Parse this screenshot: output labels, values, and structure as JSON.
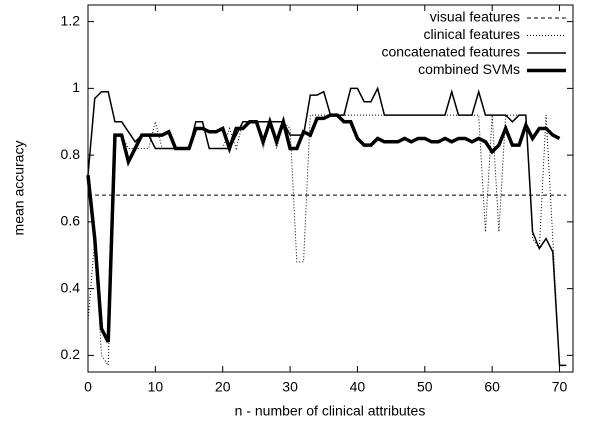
{
  "chart_data": {
    "type": "line",
    "x_label": "n - number of clinical attributes",
    "y_label": "mean accuracy",
    "x": [
      0,
      1,
      2,
      3,
      4,
      5,
      6,
      7,
      8,
      9,
      10,
      11,
      12,
      13,
      14,
      15,
      16,
      17,
      18,
      19,
      20,
      21,
      22,
      23,
      24,
      25,
      26,
      27,
      28,
      29,
      30,
      31,
      32,
      33,
      34,
      35,
      36,
      37,
      38,
      39,
      40,
      41,
      42,
      43,
      44,
      45,
      46,
      47,
      48,
      49,
      50,
      51,
      52,
      53,
      54,
      55,
      56,
      57,
      58,
      59,
      60,
      61,
      62,
      63,
      64,
      65,
      66,
      67,
      68,
      69,
      70,
      71
    ],
    "xlim": [
      0,
      72
    ],
    "xticks": [
      0,
      10,
      20,
      30,
      40,
      50,
      60,
      70
    ],
    "ylim": [
      0.15,
      1.25
    ],
    "yticks": [
      0.2,
      0.4,
      0.6,
      0.8,
      1,
      1.2
    ],
    "legend": "top-right",
    "series": [
      {
        "name": "visual features",
        "color": "#000000",
        "width": 1,
        "dash": "4,3",
        "values": [
          0.68,
          0.68,
          0.68,
          0.68,
          0.68,
          0.68,
          0.68,
          0.68,
          0.68,
          0.68,
          0.68,
          0.68,
          0.68,
          0.68,
          0.68,
          0.68,
          0.68,
          0.68,
          0.68,
          0.68,
          0.68,
          0.68,
          0.68,
          0.68,
          0.68,
          0.68,
          0.68,
          0.68,
          0.68,
          0.68,
          0.68,
          0.68,
          0.68,
          0.68,
          0.68,
          0.68,
          0.68,
          0.68,
          0.68,
          0.68,
          0.68,
          0.68,
          0.68,
          0.68,
          0.68,
          0.68,
          0.68,
          0.68,
          0.68,
          0.68,
          0.68,
          0.68,
          0.68,
          0.68,
          0.68,
          0.68,
          0.68,
          0.68,
          0.68,
          0.68,
          0.68,
          0.68,
          0.68,
          0.68,
          0.68,
          0.68,
          0.68,
          0.68,
          0.68,
          0.68,
          0.68,
          0.68
        ]
      },
      {
        "name": "clinical features",
        "color": "#000000",
        "width": 1,
        "dash": "1,2",
        "values": [
          0.3,
          0.55,
          0.2,
          0.17,
          0.86,
          0.86,
          0.82,
          0.82,
          0.82,
          0.82,
          0.9,
          0.82,
          0.82,
          0.82,
          0.82,
          0.82,
          0.9,
          0.9,
          0.82,
          0.82,
          0.82,
          0.88,
          0.82,
          0.9,
          0.9,
          0.9,
          0.82,
          0.9,
          0.82,
          0.9,
          0.88,
          0.48,
          0.48,
          0.92,
          0.92,
          0.92,
          0.92,
          0.92,
          0.92,
          0.92,
          0.92,
          0.92,
          0.92,
          0.92,
          0.92,
          0.92,
          0.92,
          0.92,
          0.92,
          0.92,
          0.92,
          0.92,
          0.92,
          0.92,
          0.92,
          0.92,
          0.92,
          0.92,
          0.92,
          0.57,
          0.92,
          0.57,
          0.92,
          0.92,
          0.92,
          0.92,
          0.55,
          0.52,
          0.92,
          0.55,
          0.17,
          0.17
        ]
      },
      {
        "name": "concatenated features",
        "color": "#000000",
        "width": 1.5,
        "dash": "none",
        "values": [
          0.74,
          0.97,
          0.99,
          0.99,
          0.9,
          0.9,
          0.87,
          0.84,
          0.86,
          0.86,
          0.82,
          0.82,
          0.82,
          0.82,
          0.82,
          0.82,
          0.9,
          0.9,
          0.82,
          0.82,
          0.82,
          0.82,
          0.86,
          0.9,
          0.9,
          0.9,
          0.9,
          0.9,
          0.9,
          0.9,
          0.86,
          0.86,
          0.86,
          0.98,
          0.98,
          0.99,
          0.92,
          0.92,
          0.92,
          1.0,
          1.0,
          0.96,
          0.96,
          1.0,
          0.92,
          0.92,
          0.92,
          0.92,
          0.92,
          0.92,
          0.92,
          0.92,
          0.92,
          0.92,
          0.99,
          0.92,
          0.92,
          0.92,
          0.99,
          0.92,
          0.92,
          0.92,
          0.92,
          0.9,
          0.92,
          0.92,
          0.57,
          0.52,
          0.55,
          0.51,
          0.17,
          0.17
        ]
      },
      {
        "name": "combined SVMs",
        "color": "#000000",
        "width": 3.5,
        "dash": "none",
        "values": [
          0.74,
          0.55,
          0.28,
          0.24,
          0.86,
          0.86,
          0.78,
          0.82,
          0.86,
          0.86,
          0.86,
          0.86,
          0.87,
          0.82,
          0.82,
          0.82,
          0.88,
          0.88,
          0.87,
          0.87,
          0.88,
          0.82,
          0.88,
          0.88,
          0.9,
          0.9,
          0.84,
          0.9,
          0.84,
          0.9,
          0.82,
          0.82,
          0.87,
          0.86,
          0.91,
          0.91,
          0.92,
          0.92,
          0.9,
          0.9,
          0.85,
          0.83,
          0.83,
          0.85,
          0.84,
          0.84,
          0.84,
          0.85,
          0.84,
          0.85,
          0.85,
          0.84,
          0.84,
          0.85,
          0.84,
          0.85,
          0.85,
          0.84,
          0.85,
          0.84,
          0.81,
          0.83,
          0.88,
          0.83,
          0.83,
          0.89,
          0.85,
          0.88,
          0.88,
          0.86,
          0.85,
          null
        ]
      }
    ]
  }
}
